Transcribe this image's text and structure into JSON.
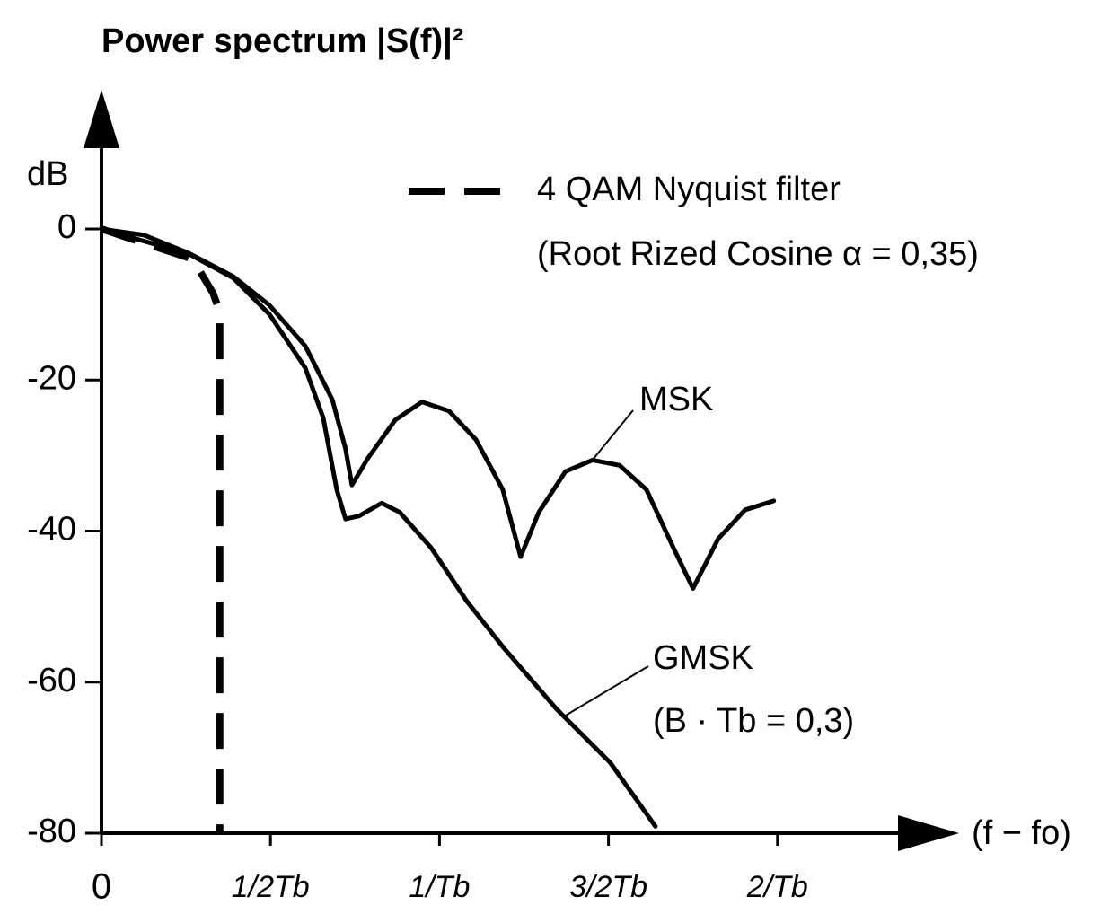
{
  "chart_data": {
    "type": "line",
    "title": "Power spectrum |S(f)|²",
    "ylabel": "dB",
    "xlabel": "(f − fo)",
    "xlim": [
      0,
      2.5
    ],
    "ylim": [
      -80,
      0
    ],
    "xticks": [
      0,
      {
        "value": 0.5,
        "label": "1/2Tb"
      },
      {
        "value": 1,
        "label": "1/Tb"
      },
      {
        "value": 1.5,
        "label": "3/2Tb"
      },
      {
        "value": 2,
        "label": "2/Tb"
      }
    ],
    "yticks": [
      0,
      -20,
      -40,
      -60,
      -80
    ],
    "series": [
      {
        "name": "4 QAM Nyquist filter",
        "color": "#000000",
        "dashed": true,
        "x": [
          0,
          0.27,
          0.33,
          0.35,
          0.35
        ],
        "values": [
          0,
          -4,
          -8.5,
          -11,
          -80
        ]
      },
      {
        "name": "MSK",
        "color": "#000000",
        "dashed": false,
        "x": [
          0,
          0.125,
          0.258,
          0.39,
          0.497,
          0.603,
          0.683,
          0.722,
          0.741,
          0.789,
          0.869,
          0.948,
          1.028,
          1.108,
          1.187,
          1.24,
          1.294,
          1.373,
          1.453,
          1.533,
          1.612,
          1.692,
          1.75,
          1.825,
          1.904,
          1.989
        ],
        "values": [
          0,
          -0.8,
          -3.2,
          -6.3,
          -10.1,
          -15.5,
          -22.6,
          -29.1,
          -33.9,
          -30.3,
          -25.3,
          -22.9,
          -24.1,
          -27.9,
          -34.5,
          -43.4,
          -37.5,
          -32.1,
          -30.6,
          -31.3,
          -34.5,
          -42.2,
          -47.6,
          -41.0,
          -37.2,
          -36.0
        ]
      },
      {
        "name": "GMSK",
        "color": "#000000",
        "dashed": false,
        "x": [
          0,
          0.258,
          0.39,
          0.497,
          0.603,
          0.656,
          0.696,
          0.722,
          0.762,
          0.829,
          0.882,
          0.975,
          1.081,
          1.187,
          1.347,
          1.506,
          1.639
        ],
        "values": [
          0,
          -3.3,
          -6.5,
          -11.3,
          -18.4,
          -25,
          -34.5,
          -38.4,
          -38.0,
          -36.3,
          -37.5,
          -42.2,
          -49.3,
          -55.3,
          -63.6,
          -70.7,
          -79.1
        ]
      }
    ],
    "annotations": [
      "(Root Rized Cosine  α = 0,35)",
      "(B · Tb = 0,3)"
    ]
  }
}
